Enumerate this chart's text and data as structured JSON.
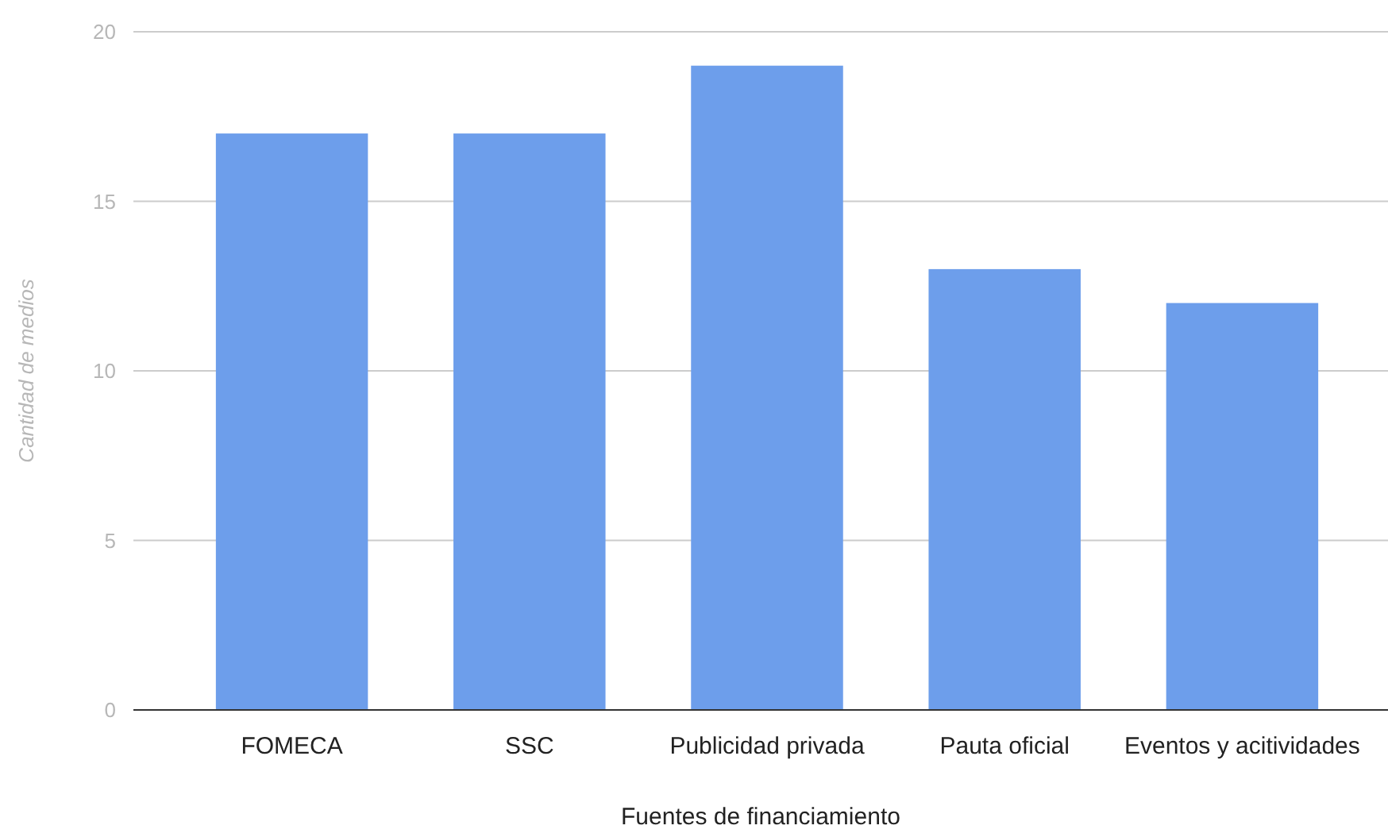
{
  "chart_data": {
    "type": "bar",
    "xlabel": "Fuentes de financiamiento",
    "ylabel": "Cantidad de medios",
    "categories": [
      "FOMECA",
      "SSC",
      "Publicidad privada",
      "Pauta oficial",
      "Eventos y acitividades"
    ],
    "values": [
      17,
      17,
      19,
      13,
      12
    ],
    "color": "#6d9eeb",
    "ylim": [
      0,
      20
    ],
    "yticks": [
      0,
      5,
      10,
      15,
      20
    ],
    "grid": "y"
  }
}
